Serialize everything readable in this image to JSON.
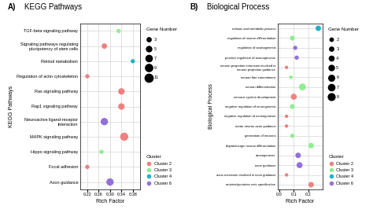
{
  "chart_data": [
    {
      "type": "scatter",
      "title": "KEGG Pathways",
      "annotations": [
        "A)"
      ],
      "x_label": "Rich Factor",
      "y_label": "KEGG Pathways",
      "orientation": "horizontal",
      "categories": [
        "TGF-beta signaling pathway",
        "Signaling pathways regulating pluripotency of stem cells",
        "Retinol metabolism",
        "Regulation of actin cytoskeleton",
        "Ras signaling pathway",
        "Rap1 signaling pathway",
        "Neuroactive ligand-receptor interaction",
        "MAPK signaling pathway",
        "Hippo signaling pathway",
        "Focal adhesion",
        "Axon guidance"
      ],
      "series": [
        {
          "name": "Cluster 2",
          "color": "#F08080",
          "values": [
            null,
            0.28,
            null,
            0.22,
            0.34,
            0.34,
            null,
            0.35,
            null,
            0.22,
            null
          ],
          "sizes": [
            null,
            5,
            null,
            3,
            7,
            7,
            null,
            11,
            null,
            3,
            null
          ]
        },
        {
          "name": "Cluster 3",
          "color": "#90EE90",
          "values": [
            0.33,
            null,
            null,
            null,
            null,
            null,
            null,
            null,
            0.27,
            null,
            null
          ],
          "sizes": [
            3,
            null,
            null,
            null,
            null,
            null,
            null,
            null,
            3,
            null,
            null
          ]
        },
        {
          "name": "Cluster 4",
          "color": "#20B2C8",
          "values": [
            null,
            null,
            0.38,
            null,
            null,
            null,
            null,
            null,
            null,
            null,
            null
          ],
          "sizes": [
            null,
            null,
            3,
            null,
            null,
            null,
            null,
            null,
            null,
            null,
            null
          ]
        },
        {
          "name": "Cluster 6",
          "color": "#9370DB",
          "values": [
            null,
            null,
            null,
            null,
            null,
            null,
            0.28,
            null,
            null,
            null,
            0.3
          ],
          "sizes": [
            null,
            null,
            null,
            null,
            null,
            null,
            9,
            null,
            null,
            null,
            9
          ]
        }
      ],
      "xlim": [
        0.195,
        0.405
      ],
      "xticks": [
        0.22,
        0.26,
        {
          "value": 0.3,
          "label": "0.30"
        },
        0.34,
        0.38
      ],
      "grid": true,
      "legend": "right",
      "legend_title": "Cluster",
      "size_legend": {
        "title": "Gene Number",
        "values": [
          3,
          5,
          7,
          9,
          11
        ]
      }
    },
    {
      "type": "scatter",
      "title": "Biological Process",
      "annotations": [
        "B)"
      ],
      "x_label": "Rich Factor",
      "y_label": "Biological Process",
      "orientation": "horizontal",
      "categories": [
        "retinoic acid metabolic process",
        "regulation of neuron differentiation",
        "regulation of axonogenesis",
        "positive regulation of axonogenesis",
        "neuron projection extension involved in neuron projection guidance",
        "neuron fate commitment",
        "neuron differentiation",
        "nervous system development",
        "negative regulation of neurogenesis",
        "negative regulation of axonogenesis",
        "motor neuron axon guidance",
        "generation of neurons",
        "dopaminergic neuron differentiation",
        "axonogenesis",
        "axon guidance",
        "axon extension involved in axon guidance",
        "anterior/posterior axis specification"
      ],
      "series": [
        {
          "name": "Cluster 2",
          "color": "#F08080",
          "values": [
            null,
            null,
            null,
            null,
            0.05,
            null,
            null,
            0.1,
            null,
            0.05,
            0.05,
            null,
            null,
            null,
            null,
            0.05,
            0.22
          ],
          "sizes": [
            null,
            null,
            null,
            null,
            2,
            null,
            null,
            6,
            null,
            2,
            2,
            null,
            null,
            null,
            null,
            2,
            5
          ]
        },
        {
          "name": "Cluster 3",
          "color": "#90EE90",
          "values": [
            null,
            0.09,
            null,
            null,
            null,
            0.08,
            0.16,
            null,
            0.09,
            null,
            null,
            0.09,
            0.22,
            null,
            null,
            null,
            null
          ],
          "sizes": [
            null,
            4,
            null,
            null,
            null,
            2,
            8,
            null,
            4,
            null,
            null,
            3,
            5,
            null,
            null,
            null,
            null
          ]
        },
        {
          "name": "Cluster 4",
          "color": "#20B2C8",
          "values": [
            0.27,
            null,
            null,
            null,
            null,
            null,
            null,
            null,
            null,
            null,
            null,
            null,
            null,
            null,
            null,
            null,
            null
          ],
          "sizes": [
            5,
            null,
            null,
            null,
            null,
            null,
            null,
            null,
            null,
            null,
            null,
            null,
            null,
            null,
            null,
            null,
            null
          ]
        },
        {
          "name": "Cluster 6",
          "color": "#9370DB",
          "values": [
            null,
            null,
            0.11,
            0.12,
            null,
            null,
            null,
            null,
            null,
            null,
            null,
            null,
            null,
            0.13,
            0.14,
            null,
            null
          ],
          "sizes": [
            null,
            null,
            3,
            3,
            null,
            null,
            null,
            null,
            null,
            null,
            null,
            null,
            null,
            5,
            6,
            null,
            null
          ]
        }
      ],
      "xlim": [
        -0.01,
        0.3
      ],
      "xticks": [
        {
          "value": 0,
          "label": "0.0"
        },
        0.1,
        0.2
      ],
      "grid": true,
      "legend": "right",
      "legend_title": "Cluster",
      "size_legend": {
        "title": "Gene Number",
        "values": [
          2,
          3,
          4,
          5,
          6,
          7,
          8
        ]
      }
    }
  ]
}
